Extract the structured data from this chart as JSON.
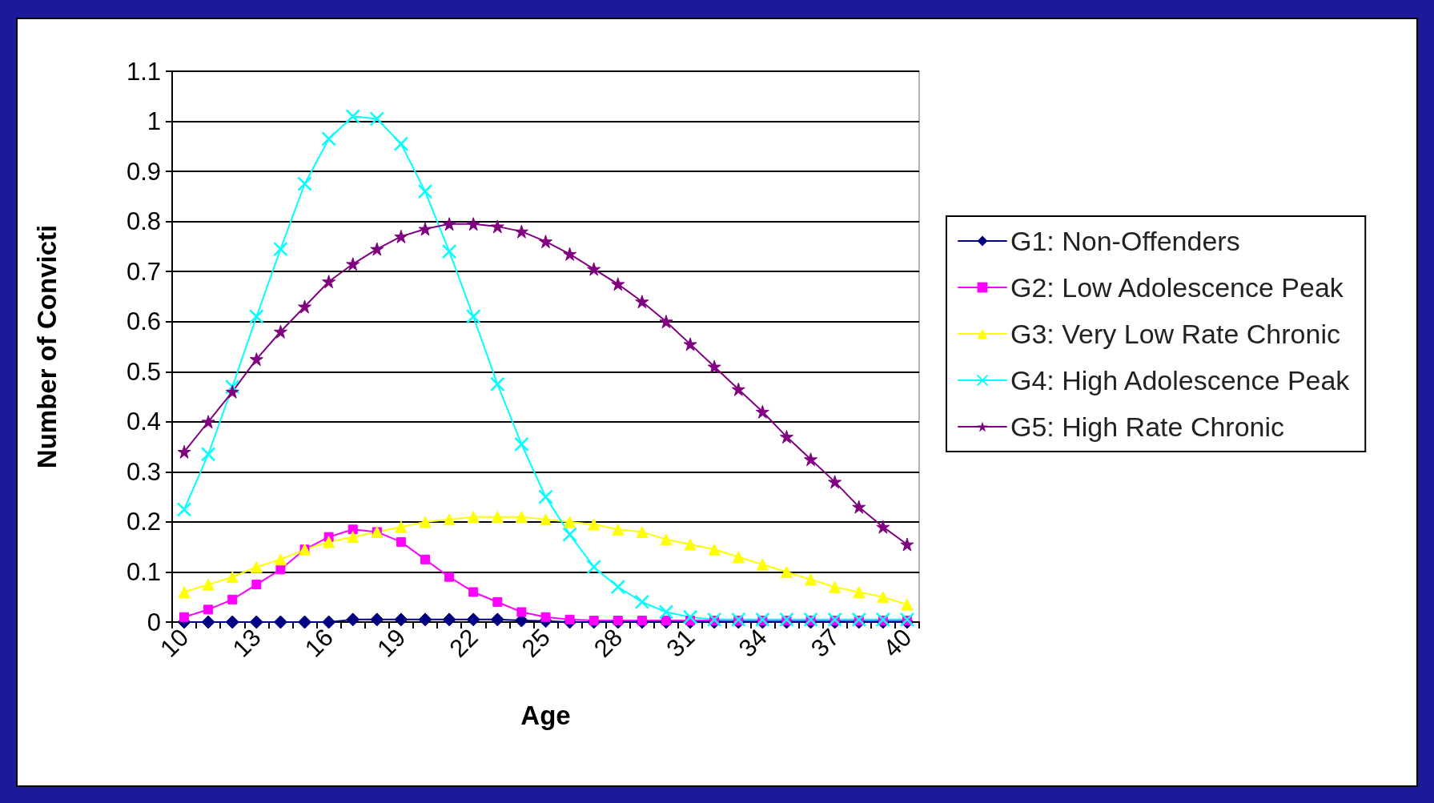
{
  "chart_data": {
    "type": "line",
    "xlabel": "Age",
    "ylabel": "Number of Convicti",
    "categories": [
      "10",
      null,
      null,
      "13",
      null,
      null,
      "16",
      null,
      null,
      "19",
      null,
      null,
      "22",
      null,
      null,
      "25",
      null,
      null,
      "28",
      null,
      null,
      "31",
      null,
      null,
      "34",
      null,
      null,
      "37",
      null,
      null,
      "40"
    ],
    "ylim": [
      0,
      1.1
    ],
    "yticks": [
      0,
      0.1,
      0.2,
      0.3,
      0.4,
      0.5,
      0.6,
      0.7,
      0.8,
      0.9,
      1,
      1.1
    ],
    "grid": "y",
    "legend": "right",
    "series": [
      {
        "name": "G1: Non-Offenders",
        "color": "#000080",
        "marker": "diamond",
        "values": [
          0,
          0,
          0,
          0,
          0,
          0,
          0,
          0.005,
          0.005,
          0.005,
          0.005,
          0.005,
          0.005,
          0.005,
          0.003,
          0.002,
          0,
          0,
          0,
          0,
          0,
          0,
          0,
          0,
          0,
          0,
          0,
          0,
          0,
          0,
          0
        ]
      },
      {
        "name": "G2: Low Adolescence Peak",
        "color": "#ff00ff",
        "marker": "square",
        "values": [
          0.01,
          0.025,
          0.045,
          0.075,
          0.105,
          0.145,
          0.17,
          0.185,
          0.18,
          0.16,
          0.125,
          0.09,
          0.06,
          0.04,
          0.02,
          0.01,
          0.005,
          0.003,
          0.003,
          0.003,
          0.003,
          0.003,
          0.003,
          0.003,
          0.003,
          0.003,
          0.003,
          0.003,
          0.003,
          0.003,
          0.003
        ]
      },
      {
        "name": "G3: Very Low Rate Chronic",
        "color": "#ffff00",
        "marker": "triangle",
        "values": [
          0.06,
          0.075,
          0.09,
          0.11,
          0.125,
          0.145,
          0.16,
          0.17,
          0.18,
          0.19,
          0.2,
          0.205,
          0.21,
          0.21,
          0.21,
          0.205,
          0.2,
          0.195,
          0.185,
          0.18,
          0.165,
          0.155,
          0.145,
          0.13,
          0.115,
          0.1,
          0.085,
          0.07,
          0.06,
          0.05,
          0.035
        ]
      },
      {
        "name": "G4: High Adolescence Peak",
        "color": "#00ffff",
        "marker": "cross",
        "values": [
          0.225,
          0.335,
          0.47,
          0.61,
          0.745,
          0.875,
          0.965,
          1.01,
          1.005,
          0.955,
          0.86,
          0.74,
          0.61,
          0.475,
          0.355,
          0.25,
          0.175,
          0.11,
          0.07,
          0.04,
          0.02,
          0.01,
          0.005,
          0.005,
          0.005,
          0.005,
          0.005,
          0.005,
          0.005,
          0.005,
          0.005
        ]
      },
      {
        "name": "G5: High Rate Chronic",
        "color": "#800080",
        "marker": "star",
        "values": [
          0.34,
          0.4,
          0.46,
          0.525,
          0.58,
          0.63,
          0.68,
          0.715,
          0.745,
          0.77,
          0.785,
          0.795,
          0.795,
          0.79,
          0.78,
          0.76,
          0.735,
          0.705,
          0.675,
          0.64,
          0.6,
          0.555,
          0.51,
          0.465,
          0.42,
          0.37,
          0.325,
          0.28,
          0.23,
          0.19,
          0.155
        ]
      }
    ]
  }
}
